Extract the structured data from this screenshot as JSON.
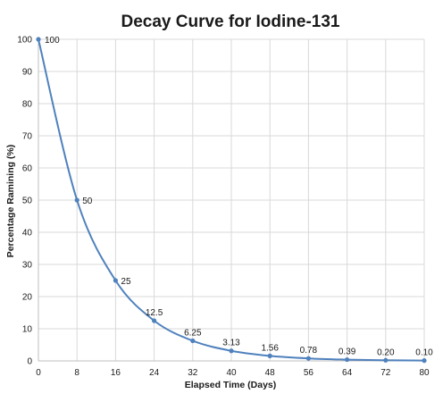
{
  "chart_data": {
    "type": "line",
    "title": "Decay Curve for Iodine-131",
    "xlabel": "Elapsed Time (Days)",
    "ylabel": "Percentage Ramining (%)",
    "xlim": [
      0,
      80
    ],
    "ylim": [
      0,
      100
    ],
    "x_ticks": [
      "0",
      "8",
      "16",
      "24",
      "32",
      "40",
      "48",
      "56",
      "64",
      "72",
      "80"
    ],
    "y_ticks": [
      "0",
      "10",
      "20",
      "30",
      "40",
      "50",
      "60",
      "70",
      "80",
      "90",
      "100"
    ],
    "grid": true,
    "smooth": true,
    "series": [
      {
        "x": [
          0,
          8,
          16,
          24,
          32,
          40,
          48,
          56,
          64,
          72,
          80
        ],
        "y": [
          100,
          50,
          25,
          12.5,
          6.25,
          3.13,
          1.56,
          0.78,
          0.39,
          0.2,
          0.1
        ],
        "labels": [
          "100",
          "50",
          "25",
          "12.5",
          "6.25",
          "3.13",
          "1.56",
          "0.78",
          "0.39",
          "0.20",
          "0.10"
        ],
        "color": "#4f81bd"
      }
    ],
    "colors": {
      "grid": "#d9d9d9",
      "axis": "#bfbfbf",
      "line": "#4f81bd"
    }
  }
}
